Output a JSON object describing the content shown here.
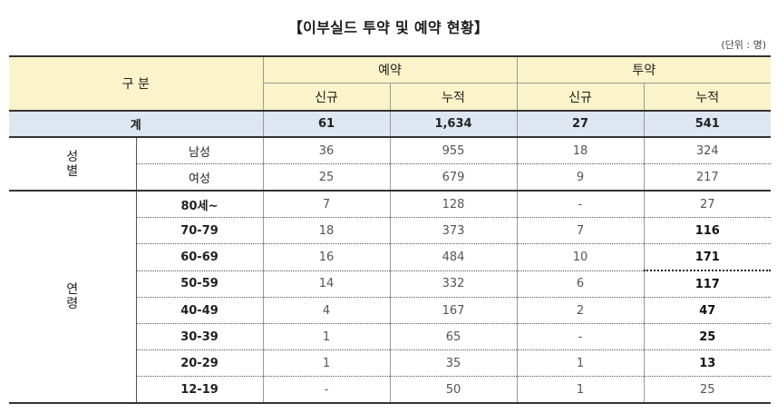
{
  "title": "【이부실드 투약 및 예약 현황】",
  "unit": "(단위 : 명)",
  "header": {
    "category": "구 분",
    "reservation": "예약",
    "administration": "투약",
    "new": "신규",
    "cumulative": "누적"
  },
  "total": {
    "label": "계",
    "res_new": "61",
    "res_cum": "1,634",
    "adm_new": "27",
    "adm_cum": "541"
  },
  "gender": {
    "group_chars": [
      "성",
      "별"
    ],
    "rows": [
      {
        "label": "남성",
        "res_new": "36",
        "res_cum": "955",
        "adm_new": "18",
        "adm_cum": "324"
      },
      {
        "label": "여성",
        "res_new": "25",
        "res_cum": "679",
        "adm_new": "9",
        "adm_cum": "217"
      }
    ]
  },
  "age": {
    "group_chars": [
      "연",
      "령"
    ],
    "rows": [
      {
        "label": "80세~",
        "res_new": "7",
        "res_cum": "128",
        "adm_new": "-",
        "adm_cum": "27"
      },
      {
        "label": "70-79",
        "res_new": "18",
        "res_cum": "373",
        "adm_new": "7",
        "adm_cum": "116"
      },
      {
        "label": "60-69",
        "res_new": "16",
        "res_cum": "484",
        "adm_new": "10",
        "adm_cum": "171"
      },
      {
        "label": "50-59",
        "res_new": "14",
        "res_cum": "332",
        "adm_new": "6",
        "adm_cum": "117"
      },
      {
        "label": "40-49",
        "res_new": "4",
        "res_cum": "167",
        "adm_new": "2",
        "adm_cum": "47"
      },
      {
        "label": "30-39",
        "res_new": "1",
        "res_cum": "65",
        "adm_new": "-",
        "adm_cum": "25"
      },
      {
        "label": "20-29",
        "res_new": "1",
        "res_cum": "35",
        "adm_new": "1",
        "adm_cum": "13"
      },
      {
        "label": "12-19",
        "res_new": "-",
        "res_cum": "50",
        "adm_new": "1",
        "adm_cum": "25"
      }
    ]
  }
}
